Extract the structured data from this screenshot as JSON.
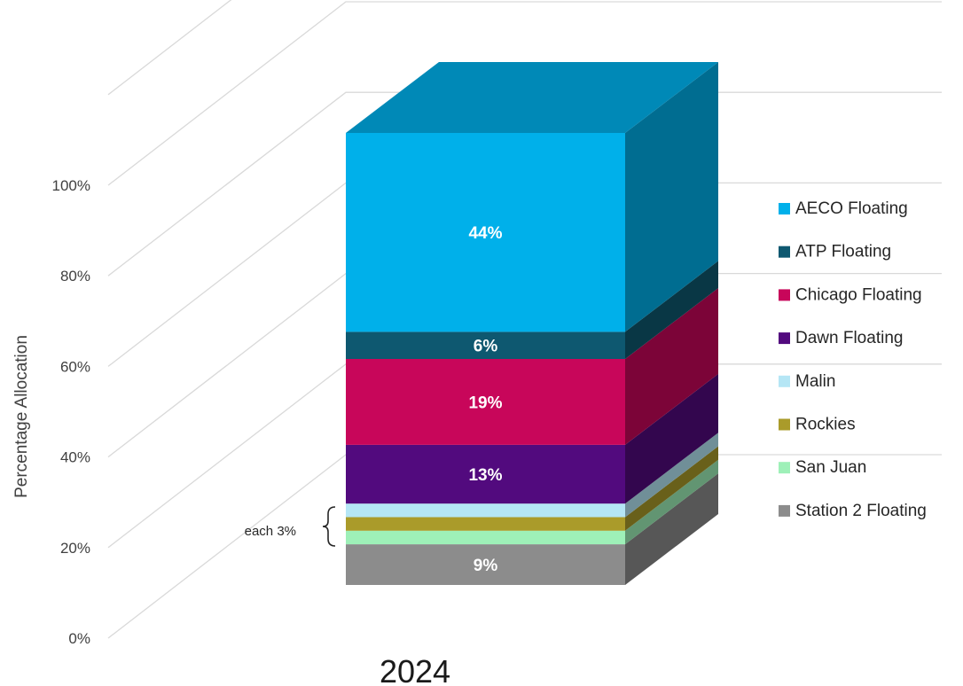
{
  "chart_data": {
    "type": "bar",
    "stacked": true,
    "three_d": true,
    "categories": [
      "2024"
    ],
    "ylabel": "Percentage Allocation",
    "ylim": [
      0,
      100
    ],
    "yticks": [
      "0%",
      "20%",
      "40%",
      "60%",
      "80%",
      "100%"
    ],
    "legend_position": "right",
    "series": [
      {
        "name": "Station 2 Floating",
        "values": [
          9
        ],
        "color": "#8c8c8c",
        "label": "9%"
      },
      {
        "name": "San Juan",
        "values": [
          3
        ],
        "color": "#9ef0b8",
        "label": ""
      },
      {
        "name": "Rockies",
        "values": [
          3
        ],
        "color": "#aa9b2a",
        "label": ""
      },
      {
        "name": "Malin",
        "values": [
          3
        ],
        "color": "#b5e6f5",
        "label": ""
      },
      {
        "name": "Dawn Floating",
        "values": [
          13
        ],
        "color": "#520a7e",
        "label": "13%"
      },
      {
        "name": "Chicago Floating",
        "values": [
          19
        ],
        "color": "#c8065a",
        "label": "19%"
      },
      {
        "name": "ATP Floating",
        "values": [
          6
        ],
        "color": "#0e5870",
        "label": "6%"
      },
      {
        "name": "AECO Floating",
        "values": [
          44
        ],
        "color": "#00b0ea",
        "label": "44%"
      }
    ],
    "annotation": "each 3%"
  }
}
